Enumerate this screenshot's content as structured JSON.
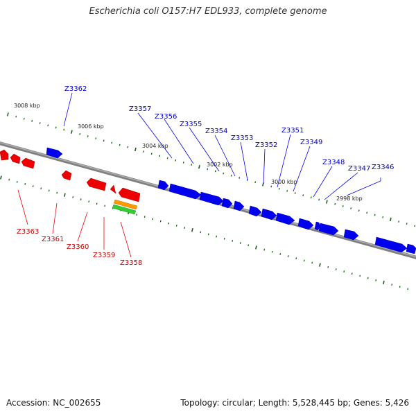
{
  "title": "Escherichia coli O157:H7 EDL933, complete genome",
  "footer": {
    "accession": "Accession: NC_002655",
    "summary": "Topology: circular; Length: 5,528,445 bp; Genes: 5,426"
  },
  "colors": {
    "forward": "#0000ee",
    "reverse": "#ee0000",
    "selected_orange": "#ff9900",
    "selected_green": "#33cc33",
    "backbone": "#808080",
    "ticks": "#116611"
  },
  "ruler": [
    {
      "label": "3008 kbp",
      "kbp": 3008
    },
    {
      "label": "3006 kbp",
      "kbp": 3006
    },
    {
      "label": "3004 kbp",
      "kbp": 3004
    },
    {
      "label": "3002 kbp",
      "kbp": 3002
    },
    {
      "label": "3000 kbp",
      "kbp": 3000
    },
    {
      "label": "2998 kbp",
      "kbp": 2998
    }
  ],
  "genes": [
    {
      "id": "Z3346",
      "strand": "forward"
    },
    {
      "id": "Z3347",
      "strand": "forward"
    },
    {
      "id": "Z3348",
      "strand": "forward"
    },
    {
      "id": "Z3349",
      "strand": "forward"
    },
    {
      "id": "Z3351",
      "strand": "forward"
    },
    {
      "id": "Z3352",
      "strand": "forward"
    },
    {
      "id": "Z3353",
      "strand": "forward"
    },
    {
      "id": "Z3354",
      "strand": "forward"
    },
    {
      "id": "Z3355",
      "strand": "forward"
    },
    {
      "id": "Z3356",
      "strand": "forward"
    },
    {
      "id": "Z3357",
      "strand": "forward"
    },
    {
      "id": "Z3362",
      "strand": "forward"
    },
    {
      "id": "Z3358",
      "strand": "reverse"
    },
    {
      "id": "Z3359",
      "strand": "reverse"
    },
    {
      "id": "Z3360",
      "strand": "reverse"
    },
    {
      "id": "Z3361",
      "strand": "reverse"
    },
    {
      "id": "Z3363",
      "strand": "reverse"
    }
  ]
}
